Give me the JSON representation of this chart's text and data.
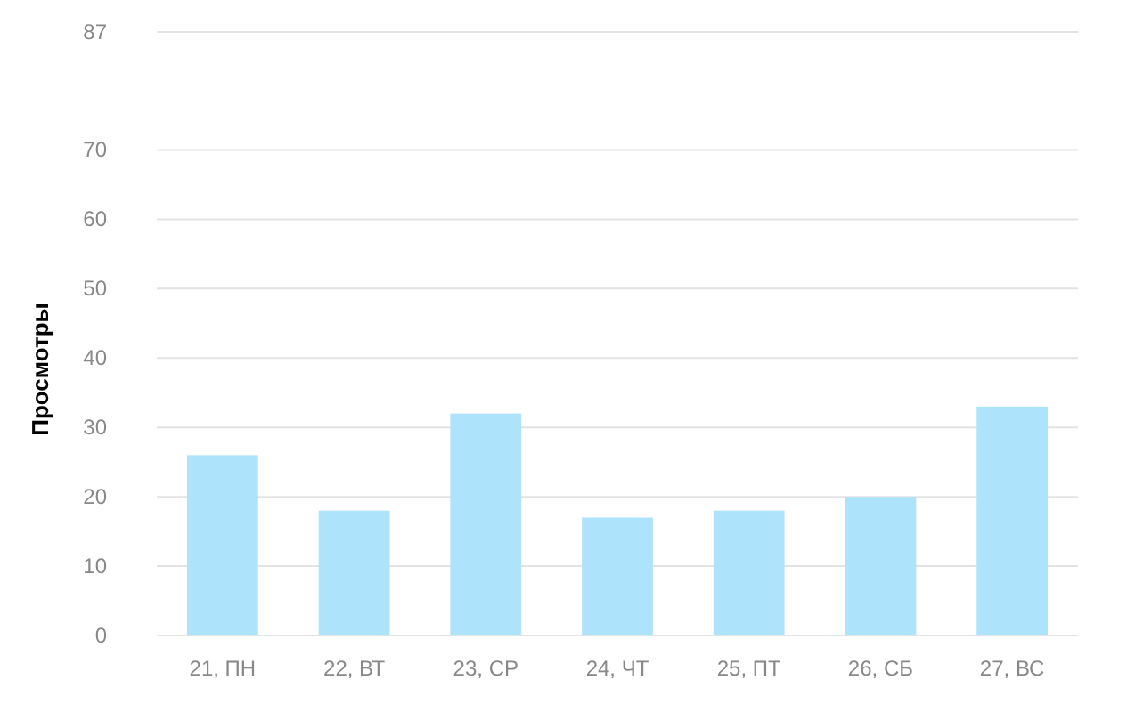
{
  "chart_data": {
    "type": "bar",
    "ylabel": "Просмотры",
    "categories": [
      "21, ПН",
      "22, ВТ",
      "23, СР",
      "24, ЧТ",
      "25, ПТ",
      "26, СБ",
      "27, ВС"
    ],
    "values": [
      26,
      18,
      32,
      17,
      18,
      20,
      33
    ],
    "color": "#aee3fc",
    "ylim": [
      0,
      87
    ],
    "yticks": [
      0,
      10,
      20,
      30,
      40,
      50,
      60,
      70,
      87
    ],
    "grid": "y"
  }
}
